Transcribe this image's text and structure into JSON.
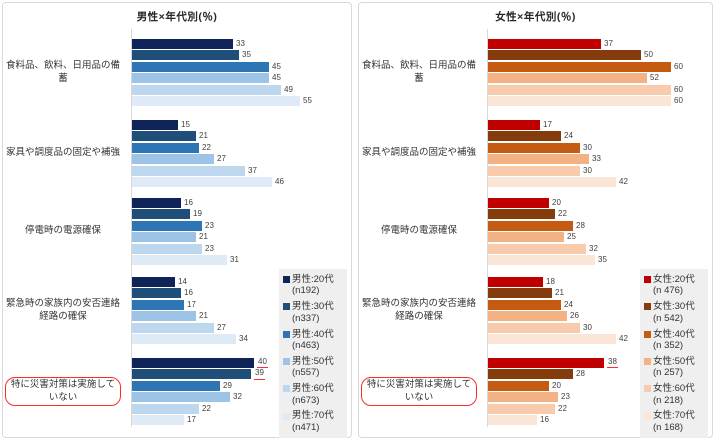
{
  "chart_data": [
    {
      "type": "bar",
      "orientation": "horizontal",
      "title": "男性×年代別(％)",
      "unit": "%",
      "xlim": [
        0,
        65
      ],
      "grid": false,
      "value_labels": true,
      "legend_position": "bottom-right",
      "categories": [
        "食料品、飲料、日用品の備蓄",
        "家具や調度品の固定や補強",
        "停電時の電源確保",
        "緊急時の家族内の安否連絡経路の確保",
        "特に災害対策は実施していない"
      ],
      "series": [
        {
          "name": "男性:20代",
          "n": "(n192)",
          "color": "#0E2459",
          "values": [
            33,
            15,
            16,
            14,
            40
          ]
        },
        {
          "name": "男性:30代",
          "n": "(n337)",
          "color": "#1F4E79",
          "values": [
            35,
            21,
            19,
            16,
            39
          ]
        },
        {
          "name": "男性:40代",
          "n": "(n463)",
          "color": "#2E75B6",
          "values": [
            45,
            22,
            23,
            17,
            29
          ]
        },
        {
          "name": "男性:50代",
          "n": "(n557)",
          "color": "#9DC3E6",
          "values": [
            45,
            27,
            21,
            21,
            32
          ]
        },
        {
          "name": "男性:60代",
          "n": "(n673)",
          "color": "#BDD7EE",
          "values": [
            49,
            37,
            23,
            27,
            22
          ]
        },
        {
          "name": "男性:70代",
          "n": "(n471)",
          "color": "#DEEBF7",
          "values": [
            55,
            46,
            31,
            34,
            17
          ]
        }
      ],
      "annotations": {
        "annotation_color": "#FF2B2B",
        "circled_category_index": 4,
        "underlined_value_labels": [
          {
            "category_index": 4,
            "series_index": 0
          },
          {
            "category_index": 4,
            "series_index": 1
          }
        ]
      }
    },
    {
      "type": "bar",
      "orientation": "horizontal",
      "title": "女性×年代別(％)",
      "unit": "%",
      "xlim": [
        0,
        65
      ],
      "grid": false,
      "value_labels": true,
      "legend_position": "bottom-right",
      "categories": [
        "食料品、飲料、日用品の備蓄",
        "家具や調度品の固定や補強",
        "停電時の電源確保",
        "緊急時の家族内の安否連絡経路の確保",
        "特に災害対策は実施していない"
      ],
      "series": [
        {
          "name": "女性:20代",
          "n": "(n 476)",
          "color": "#C00000",
          "values": [
            37,
            17,
            20,
            18,
            38
          ]
        },
        {
          "name": "女性:30代",
          "n": "(n 542)",
          "color": "#843C0C",
          "values": [
            50,
            24,
            22,
            21,
            28
          ]
        },
        {
          "name": "女性:40代",
          "n": "(n 352)",
          "color": "#C55A11",
          "values": [
            60,
            30,
            28,
            24,
            20
          ]
        },
        {
          "name": "女性:50代",
          "n": "(n 257)",
          "color": "#F4B183",
          "values": [
            52,
            33,
            25,
            26,
            23
          ]
        },
        {
          "name": "女性:60代",
          "n": "(n 218)",
          "color": "#F8CBAD",
          "values": [
            60,
            30,
            32,
            30,
            22
          ]
        },
        {
          "name": "女性:70代",
          "n": "(n 168)",
          "color": "#FBE5D6",
          "values": [
            60,
            42,
            35,
            42,
            16
          ]
        }
      ],
      "annotations": {
        "annotation_color": "#FF2B2B",
        "circled_category_index": 4,
        "underlined_value_labels": [
          {
            "category_index": 4,
            "series_index": 0
          }
        ]
      }
    }
  ]
}
